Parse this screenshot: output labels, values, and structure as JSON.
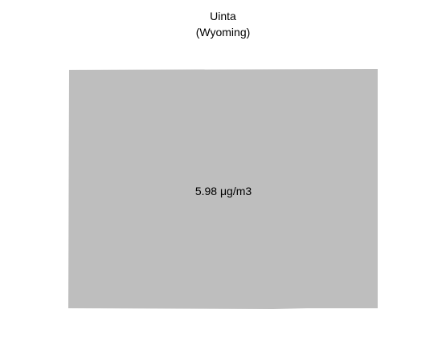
{
  "map": {
    "region_name": "Uinta",
    "state_label": "(Wyoming)",
    "value_label": "5.98 μg/m3",
    "fill_color": "#bebebe",
    "background_color": "#ffffff"
  }
}
